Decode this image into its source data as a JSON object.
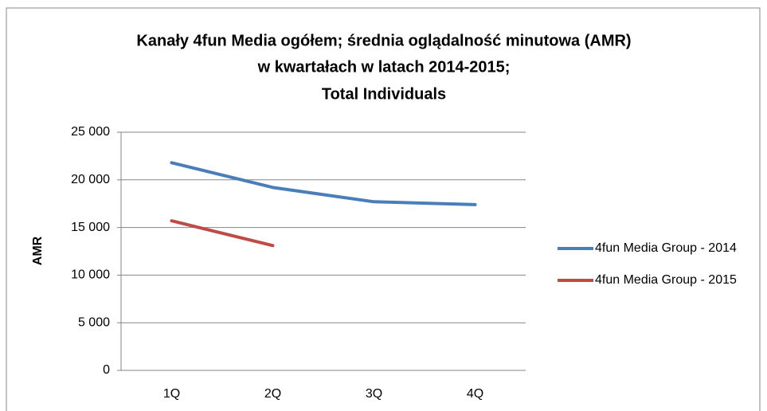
{
  "chart_data": {
    "type": "line",
    "title": [
      "Kanały 4fun Media ogółem; średnia oglądalność  minutowa (AMR)",
      "w kwartałach w latach 2014-2015;",
      "Total Individuals"
    ],
    "y_label": "AMR",
    "categories": [
      "1Q",
      "2Q",
      "3Q",
      "4Q"
    ],
    "series": [
      {
        "name": "4fun Media Group - 2014",
        "color": "#4a7ebb",
        "values": [
          21800,
          19200,
          17700,
          17400
        ]
      },
      {
        "name": "4fun Media Group - 2015",
        "color": "#be4b48",
        "values": [
          15700,
          13100,
          null,
          null
        ]
      }
    ],
    "ylim": [
      0,
      25000
    ],
    "yticks": [
      0,
      {
        "value": 5000,
        "label": "5 000"
      },
      {
        "value": 10000,
        "label": "10 000"
      },
      {
        "value": 15000,
        "label": "15 000"
      },
      {
        "value": 20000,
        "label": "20 000"
      },
      {
        "value": 25000,
        "label": "25 000"
      }
    ],
    "grid": true,
    "legend": "right"
  }
}
